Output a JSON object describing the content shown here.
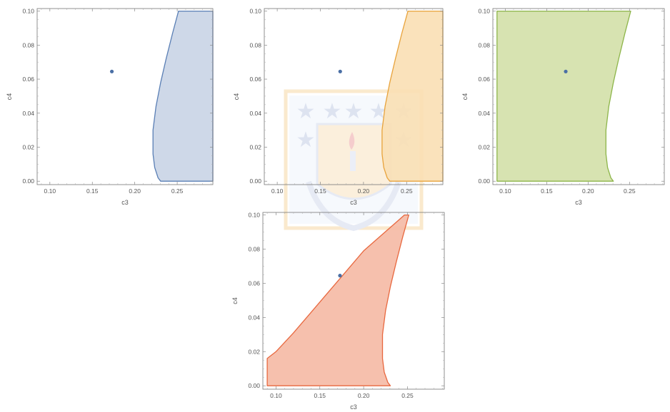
{
  "chart_data": [
    {
      "type": "region-plot",
      "xlabel": "c3",
      "ylabel": "c4",
      "xlim": [
        0.085,
        0.292
      ],
      "ylim": [
        -0.002,
        0.1015
      ],
      "xticks": [
        "0.10",
        "0.15",
        "0.20",
        "0.25"
      ],
      "yticks": [
        "0.00",
        "0.02",
        "0.04",
        "0.06",
        "0.08",
        "0.10"
      ],
      "point": {
        "x": 0.173,
        "y": 0.0645,
        "color": "#4a6fa5"
      },
      "region": {
        "fill": "#c9d4e6",
        "stroke": "#5a7fb5",
        "boundary": [
          [
            0.2515,
            0.1
          ],
          [
            0.292,
            0.1
          ],
          [
            0.292,
            0.0
          ],
          [
            0.2305,
            0.0
          ],
          [
            0.2275,
            0.002
          ],
          [
            0.2235,
            0.008
          ],
          [
            0.2215,
            0.016
          ],
          [
            0.2215,
            0.03
          ],
          [
            0.225,
            0.044
          ],
          [
            0.2305,
            0.058
          ],
          [
            0.237,
            0.072
          ],
          [
            0.2445,
            0.087
          ],
          [
            0.2515,
            0.1
          ]
        ]
      }
    },
    {
      "type": "region-plot",
      "xlabel": "c3",
      "ylabel": "c4",
      "xlim": [
        0.085,
        0.292
      ],
      "ylim": [
        -0.002,
        0.1015
      ],
      "xticks": [
        "0.10",
        "0.15",
        "0.20",
        "0.25"
      ],
      "yticks": [
        "0.00",
        "0.02",
        "0.04",
        "0.06",
        "0.08",
        "0.10"
      ],
      "point": {
        "x": 0.173,
        "y": 0.0645,
        "color": "#4a6fa5"
      },
      "region": {
        "fill": "#f9dfb4",
        "stroke": "#e8a33c",
        "boundary": [
          [
            0.2515,
            0.1
          ],
          [
            0.292,
            0.1
          ],
          [
            0.292,
            0.0
          ],
          [
            0.2305,
            0.0
          ],
          [
            0.2275,
            0.002
          ],
          [
            0.2235,
            0.008
          ],
          [
            0.2215,
            0.016
          ],
          [
            0.2215,
            0.03
          ],
          [
            0.225,
            0.044
          ],
          [
            0.2305,
            0.058
          ],
          [
            0.237,
            0.072
          ],
          [
            0.2445,
            0.087
          ],
          [
            0.2515,
            0.1
          ]
        ]
      }
    },
    {
      "type": "region-plot",
      "xlabel": "c3",
      "ylabel": "c4",
      "xlim": [
        0.085,
        0.292
      ],
      "ylim": [
        -0.002,
        0.1015
      ],
      "xticks": [
        "0.10",
        "0.15",
        "0.20",
        "0.25"
      ],
      "yticks": [
        "0.00",
        "0.02",
        "0.04",
        "0.06",
        "0.08",
        "0.10"
      ],
      "point": {
        "x": 0.173,
        "y": 0.0645,
        "color": "#4a6fa5"
      },
      "region": {
        "fill": "#d3e0a8",
        "stroke": "#8db54a",
        "boundary": [
          [
            0.09,
            0.1
          ],
          [
            0.2515,
            0.1
          ],
          [
            0.2445,
            0.087
          ],
          [
            0.237,
            0.072
          ],
          [
            0.2305,
            0.058
          ],
          [
            0.225,
            0.044
          ],
          [
            0.2215,
            0.03
          ],
          [
            0.2215,
            0.016
          ],
          [
            0.2235,
            0.008
          ],
          [
            0.2275,
            0.002
          ],
          [
            0.2305,
            0.0
          ],
          [
            0.09,
            0.0
          ],
          [
            0.09,
            0.1
          ]
        ]
      }
    },
    {
      "type": "region-plot",
      "xlabel": "c3",
      "ylabel": "c4",
      "xlim": [
        0.085,
        0.292
      ],
      "ylim": [
        -0.002,
        0.1015
      ],
      "xticks": [
        "0.10",
        "0.15",
        "0.20",
        "0.25"
      ],
      "yticks": [
        "0.00",
        "0.02",
        "0.04",
        "0.06",
        "0.08",
        "0.10"
      ],
      "point": {
        "x": 0.173,
        "y": 0.0645,
        "color": "#4a6fa5"
      },
      "region": {
        "fill": "#f5b9a4",
        "stroke": "#e8683f",
        "boundary": [
          [
            0.2515,
            0.1
          ],
          [
            0.2445,
            0.087
          ],
          [
            0.237,
            0.072
          ],
          [
            0.2305,
            0.058
          ],
          [
            0.225,
            0.044
          ],
          [
            0.2215,
            0.03
          ],
          [
            0.2215,
            0.016
          ],
          [
            0.2235,
            0.008
          ],
          [
            0.2275,
            0.002
          ],
          [
            0.2305,
            0.0
          ],
          [
            0.09,
            0.0
          ],
          [
            0.09,
            0.016
          ],
          [
            0.1,
            0.02
          ],
          [
            0.12,
            0.031
          ],
          [
            0.14,
            0.043
          ],
          [
            0.16,
            0.055
          ],
          [
            0.18,
            0.067
          ],
          [
            0.2,
            0.079
          ],
          [
            0.22,
            0.088
          ],
          [
            0.24,
            0.097
          ],
          [
            0.2465,
            0.1
          ],
          [
            0.2515,
            0.1
          ]
        ]
      }
    }
  ]
}
